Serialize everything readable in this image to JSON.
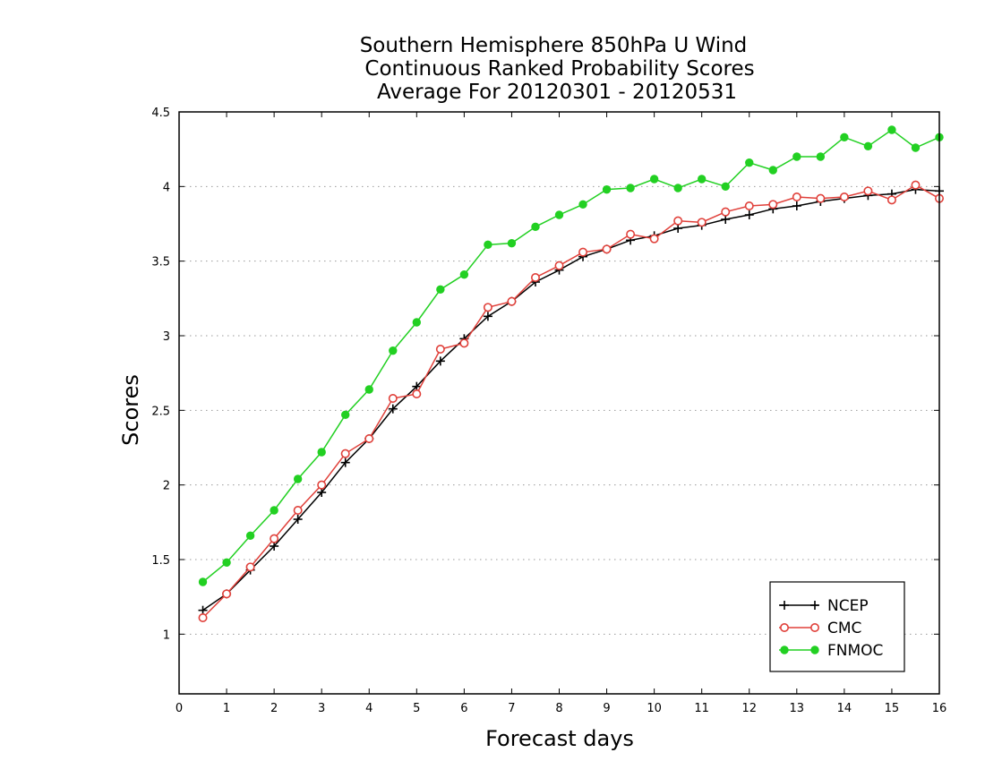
{
  "chart_data": {
    "type": "line",
    "title_lines": [
      "Southern Hemisphere 850hPa U Wind",
      "Continuous Ranked Probability Scores",
      "Average For 20120301 - 20120531"
    ],
    "xlabel": "Forecast days",
    "ylabel": "Scores",
    "xlim": [
      0,
      16
    ],
    "ylim": [
      0.6,
      4.5
    ],
    "x_ticks": [
      "0",
      "1",
      "2",
      "3",
      "4",
      "5",
      "6",
      "7",
      "8",
      "9",
      "10",
      "11",
      "12",
      "13",
      "14",
      "15",
      "16"
    ],
    "y_ticks": [
      "1",
      "1.5",
      "2",
      "2.5",
      "3",
      "3.5",
      "4",
      "4.5"
    ],
    "grid": "horizontal dotted",
    "legend_position": "bottom-right",
    "x": [
      0.5,
      1,
      1.5,
      2,
      2.5,
      3,
      3.5,
      4,
      4.5,
      5,
      5.5,
      6,
      6.5,
      7,
      7.5,
      8,
      8.5,
      9,
      9.5,
      10,
      10.5,
      11,
      11.5,
      12,
      12.5,
      13,
      13.5,
      14,
      14.5,
      15,
      15.5,
      16
    ],
    "series": [
      {
        "name": "NCEP",
        "color": "#000000",
        "marker": "plus",
        "values": [
          1.16,
          1.27,
          1.43,
          1.59,
          1.77,
          1.95,
          2.15,
          2.31,
          2.51,
          2.66,
          2.83,
          2.98,
          3.13,
          3.23,
          3.36,
          3.44,
          3.53,
          3.58,
          3.64,
          3.67,
          3.72,
          3.74,
          3.78,
          3.81,
          3.85,
          3.87,
          3.9,
          3.92,
          3.94,
          3.95,
          3.98,
          3.97
        ]
      },
      {
        "name": "CMC",
        "color": "#e0403a",
        "marker": "open-circle",
        "values": [
          1.11,
          1.27,
          1.45,
          1.64,
          1.83,
          2.0,
          2.21,
          2.31,
          2.58,
          2.61,
          2.91,
          2.95,
          3.19,
          3.23,
          3.39,
          3.47,
          3.56,
          3.58,
          3.68,
          3.65,
          3.77,
          3.76,
          3.83,
          3.87,
          3.88,
          3.93,
          3.92,
          3.93,
          3.97,
          3.91,
          4.01,
          3.92
        ]
      },
      {
        "name": "FNMOC",
        "color": "#22d022",
        "marker": "filled-circle",
        "values": [
          1.35,
          1.48,
          1.66,
          1.83,
          2.04,
          2.22,
          2.47,
          2.64,
          2.9,
          3.09,
          3.31,
          3.41,
          3.61,
          3.62,
          3.73,
          3.81,
          3.88,
          3.98,
          3.99,
          4.05,
          3.99,
          4.05,
          4.0,
          4.16,
          4.11,
          4.2,
          4.2,
          4.33,
          4.27,
          4.38,
          4.26,
          4.33
        ]
      }
    ]
  }
}
